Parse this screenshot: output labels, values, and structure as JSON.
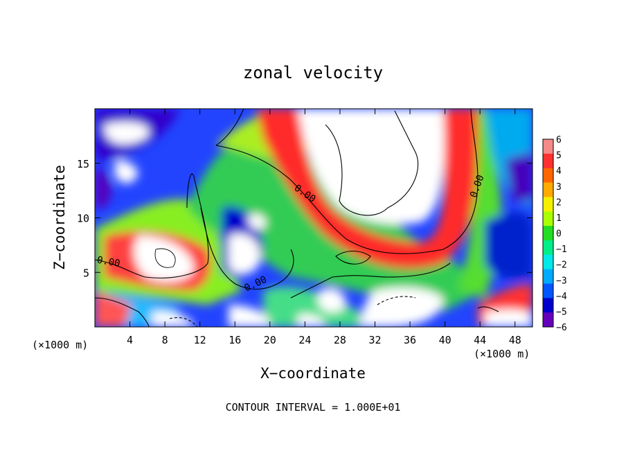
{
  "chart_data": {
    "type": "heatmap",
    "title": "zonal velocity",
    "xlabel": "X−coordinate",
    "ylabel": "Z−coordinate",
    "x_unit_left": "(×1000 m)",
    "x_unit_right": "(×1000 m)",
    "footnote": "CONTOUR INTERVAL = 1.000E+01",
    "xlim": [
      0,
      50
    ],
    "ylim": [
      0,
      20
    ],
    "x_ticks": [
      4,
      8,
      12,
      16,
      20,
      24,
      28,
      32,
      36,
      40,
      44,
      48
    ],
    "y_ticks": [
      5,
      10,
      15
    ],
    "colorbar": {
      "range": [
        -6,
        6
      ],
      "ticks": [
        "6",
        "5",
        "4",
        "3",
        "2",
        "1",
        "0",
        "−1",
        "−2",
        "−3",
        "−4",
        "−5",
        "−6"
      ],
      "colors": [
        "#f58a8a",
        "#ff3030",
        "#ff6600",
        "#ffaa00",
        "#f5f000",
        "#aaff00",
        "#22dd22",
        "#00ee88",
        "#00e8e8",
        "#00aaff",
        "#0055ff",
        "#0000cc",
        "#6600bb"
      ]
    },
    "contour_labels": [
      {
        "text": "0.00",
        "x": 1.5,
        "z": 5.7,
        "rotate": 10
      },
      {
        "text": "0.00",
        "x": 18.5,
        "z": 3.7,
        "rotate": -25
      },
      {
        "text": "0.00",
        "x": 23.8,
        "z": 12.0,
        "rotate": 35
      },
      {
        "text": "0.00",
        "x": 44.0,
        "z": 12.8,
        "rotate": -70
      }
    ],
    "notes_saturated": "white regions exceed the colour scale"
  }
}
